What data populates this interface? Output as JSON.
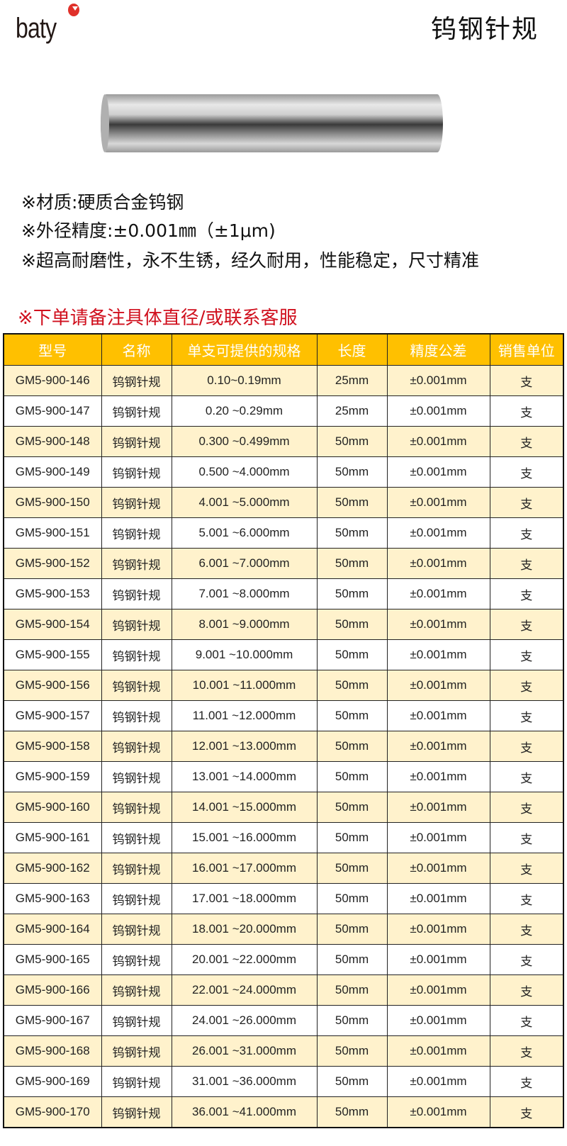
{
  "brand": {
    "logo_text": "baty",
    "dot_color": "#e0312a"
  },
  "title": "钨钢针规",
  "specs": [
    "※材质:硬质合金钨钢",
    "※外径精度:±0.001㎜（±1μm)",
    "※超高耐磨性，永不生锈，经久耐用，性能稳定，尺寸精准"
  ],
  "note": "※下单请备注具体直径/或联系客服",
  "colors": {
    "header": "#ffc000",
    "row_alt": "#fff2cc",
    "note": "#d0101e"
  },
  "table": {
    "headers": [
      "型号",
      "名称",
      "单支可提供的规格",
      "长度",
      "精度公差",
      "销售单位"
    ],
    "rows": [
      [
        "GM5-900-146",
        "钨钢针规",
        "0.10~0.19mm",
        "25mm",
        "±0.001mm",
        "支"
      ],
      [
        "GM5-900-147",
        "钨钢针规",
        "0.20 ~0.29mm",
        "25mm",
        "±0.001mm",
        "支"
      ],
      [
        "GM5-900-148",
        "钨钢针规",
        "0.300 ~0.499mm",
        "50mm",
        "±0.001mm",
        "支"
      ],
      [
        "GM5-900-149",
        "钨钢针规",
        "0.500 ~4.000mm",
        "50mm",
        "±0.001mm",
        "支"
      ],
      [
        "GM5-900-150",
        "钨钢针规",
        "4.001 ~5.000mm",
        "50mm",
        "±0.001mm",
        "支"
      ],
      [
        "GM5-900-151",
        "钨钢针规",
        "5.001 ~6.000mm",
        "50mm",
        "±0.001mm",
        "支"
      ],
      [
        "GM5-900-152",
        "钨钢针规",
        "6.001 ~7.000mm",
        "50mm",
        "±0.001mm",
        "支"
      ],
      [
        "GM5-900-153",
        "钨钢针规",
        "7.001 ~8.000mm",
        "50mm",
        "±0.001mm",
        "支"
      ],
      [
        "GM5-900-154",
        "钨钢针规",
        "8.001 ~9.000mm",
        "50mm",
        "±0.001mm",
        "支"
      ],
      [
        "GM5-900-155",
        "钨钢针规",
        "9.001 ~10.000mm",
        "50mm",
        "±0.001mm",
        "支"
      ],
      [
        "GM5-900-156",
        "钨钢针规",
        "10.001 ~11.000mm",
        "50mm",
        "±0.001mm",
        "支"
      ],
      [
        "GM5-900-157",
        "钨钢针规",
        "11.001 ~12.000mm",
        "50mm",
        "±0.001mm",
        "支"
      ],
      [
        "GM5-900-158",
        "钨钢针规",
        "12.001 ~13.000mm",
        "50mm",
        "±0.001mm",
        "支"
      ],
      [
        "GM5-900-159",
        "钨钢针规",
        "13.001 ~14.000mm",
        "50mm",
        "±0.001mm",
        "支"
      ],
      [
        "GM5-900-160",
        "钨钢针规",
        "14.001 ~15.000mm",
        "50mm",
        "±0.001mm",
        "支"
      ],
      [
        "GM5-900-161",
        "钨钢针规",
        "15.001 ~16.000mm",
        "50mm",
        "±0.001mm",
        "支"
      ],
      [
        "GM5-900-162",
        "钨钢针规",
        "16.001 ~17.000mm",
        "50mm",
        "±0.001mm",
        "支"
      ],
      [
        "GM5-900-163",
        "钨钢针规",
        "17.001 ~18.000mm",
        "50mm",
        "±0.001mm",
        "支"
      ],
      [
        "GM5-900-164",
        "钨钢针规",
        "18.001 ~20.000mm",
        "50mm",
        "±0.001mm",
        "支"
      ],
      [
        "GM5-900-165",
        "钨钢针规",
        "20.001 ~22.000mm",
        "50mm",
        "±0.001mm",
        "支"
      ],
      [
        "GM5-900-166",
        "钨钢针规",
        "22.001 ~24.000mm",
        "50mm",
        "±0.001mm",
        "支"
      ],
      [
        "GM5-900-167",
        "钨钢针规",
        "24.001 ~26.000mm",
        "50mm",
        "±0.001mm",
        "支"
      ],
      [
        "GM5-900-168",
        "钨钢针规",
        "26.001 ~31.000mm",
        "50mm",
        "±0.001mm",
        "支"
      ],
      [
        "GM5-900-169",
        "钨钢针规",
        "31.001 ~36.000mm",
        "50mm",
        "±0.001mm",
        "支"
      ],
      [
        "GM5-900-170",
        "钨钢针规",
        "36.001 ~41.000mm",
        "50mm",
        "±0.001mm",
        "支"
      ]
    ]
  }
}
